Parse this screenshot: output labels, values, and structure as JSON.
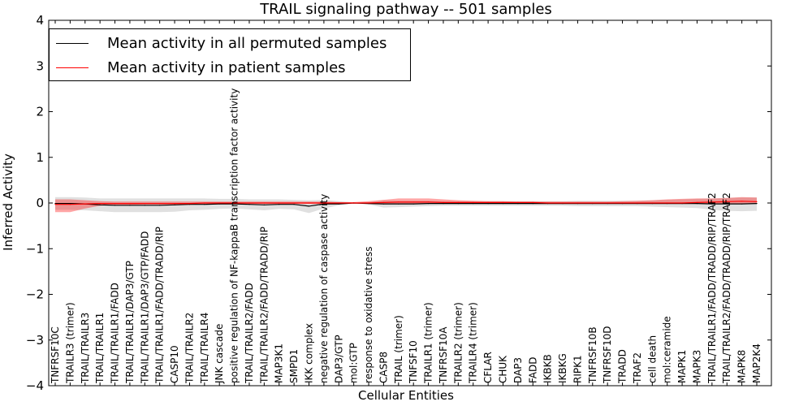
{
  "chart_data": {
    "type": "line",
    "title": "TRAIL signaling pathway -- 501 samples",
    "xlabel": "Cellular Entities",
    "ylabel": "Inferred Activity",
    "ylim": [
      -4,
      4
    ],
    "yticks": [
      "−4",
      "−3",
      "−2",
      "−1",
      "0",
      "1",
      "2",
      "3",
      "4"
    ],
    "ytick_values": [
      -4,
      -3,
      -2,
      -1,
      0,
      1,
      2,
      3,
      4
    ],
    "categories": [
      "TNFRSF10C",
      "TRAILR3 (trimer)",
      "TRAIL/TRAILR3",
      "TRAIL/TRAILR1",
      "TRAIL/TRAILR1/FADD",
      "TRAIL/TRAILR1/DAP3/GTP",
      "TRAIL/TRAILR1/DAP3/GTP/FADD",
      "TRAIL/TRAILR1/FADD/TRADD/RIP",
      "CASP10",
      "TRAIL/TRAILR2",
      "TRAIL/TRAILR4",
      "JNK cascade",
      "positive regulation of NF-kappaB transcription factor activity",
      "TRAIL/TRAILR2/FADD",
      "TRAIL/TRAILR2/FADD/TRADD/RIP",
      "MAP3K1",
      "SMPD1",
      "IKK complex",
      "negative regulation of caspase activity",
      "DAP3/GTP",
      "mol:GTP",
      "response to oxidative stress",
      "CASP8",
      "TRAIL (trimer)",
      "TNFSF10",
      "TRAILR1 (trimer)",
      "TNFRSF10A",
      "TRAILR2 (trimer)",
      "TRAILR4 (trimer)",
      "CFLAR",
      "CHUK",
      "DAP3",
      "FADD",
      "IKBKB",
      "IKBKG",
      "RIPK1",
      "TNFRSF10B",
      "TNFRSF10D",
      "TRADD",
      "TRAF2",
      "cell death",
      "mol:ceramide",
      "MAPK1",
      "MAPK3",
      "TRAIL/TRAILR1/FADD/TRADD/RIP/TRAF2",
      "TRAIL/TRAILR2/FADD/TRADD/RIP/TRAF2",
      "MAPK8",
      "MAP2K4"
    ],
    "series": [
      {
        "name": "Mean activity in all permuted samples",
        "color": "#000000",
        "values": [
          -0.01,
          -0.01,
          -0.02,
          -0.04,
          -0.05,
          -0.05,
          -0.05,
          -0.05,
          -0.04,
          -0.03,
          -0.03,
          -0.02,
          -0.02,
          -0.03,
          -0.04,
          -0.03,
          -0.03,
          -0.07,
          -0.02,
          -0.02,
          0.0,
          -0.01,
          -0.02,
          -0.02,
          -0.02,
          -0.01,
          -0.01,
          -0.01,
          -0.01,
          -0.01,
          -0.01,
          -0.01,
          -0.01,
          -0.01,
          -0.01,
          -0.01,
          -0.01,
          -0.01,
          -0.01,
          -0.01,
          -0.01,
          -0.01,
          -0.01,
          -0.01,
          -0.02,
          -0.02,
          -0.02,
          -0.01
        ],
        "band_lower": [
          -0.15,
          -0.15,
          -0.16,
          -0.18,
          -0.2,
          -0.2,
          -0.2,
          -0.2,
          -0.19,
          -0.16,
          -0.15,
          -0.13,
          -0.12,
          -0.14,
          -0.16,
          -0.13,
          -0.14,
          -0.22,
          -0.12,
          -0.05,
          -0.01,
          -0.03,
          -0.1,
          -0.09,
          -0.08,
          -0.07,
          -0.06,
          -0.06,
          -0.06,
          -0.06,
          -0.06,
          -0.06,
          -0.06,
          -0.06,
          -0.06,
          -0.07,
          -0.07,
          -0.07,
          -0.07,
          -0.07,
          -0.08,
          -0.09,
          -0.1,
          -0.11,
          -0.15,
          -0.17,
          -0.18,
          -0.17
        ],
        "band_upper": [
          0.13,
          0.13,
          0.12,
          0.1,
          0.1,
          0.1,
          0.1,
          0.1,
          0.1,
          0.1,
          0.1,
          0.09,
          0.09,
          0.08,
          0.08,
          0.08,
          0.07,
          0.06,
          0.07,
          0.04,
          0.01,
          0.02,
          0.06,
          0.05,
          0.05,
          0.05,
          0.04,
          0.04,
          0.04,
          0.04,
          0.04,
          0.04,
          0.04,
          0.04,
          0.04,
          0.05,
          0.05,
          0.05,
          0.05,
          0.05,
          0.06,
          0.07,
          0.08,
          0.09,
          0.1,
          0.11,
          0.12,
          0.12
        ]
      },
      {
        "name": "Mean activity in patient samples",
        "color": "#ff0000",
        "values": [
          -0.03,
          -0.03,
          -0.02,
          -0.01,
          -0.01,
          -0.01,
          -0.01,
          -0.01,
          -0.01,
          -0.01,
          0.0,
          0.0,
          0.0,
          0.0,
          0.0,
          0.0,
          0.0,
          0.0,
          0.0,
          0.0,
          0.0,
          0.0,
          0.01,
          0.02,
          0.02,
          0.02,
          0.01,
          0.01,
          0.01,
          0.01,
          0.01,
          0.01,
          0.01,
          0.0,
          0.0,
          0.0,
          0.0,
          0.0,
          0.0,
          0.0,
          0.0,
          0.0,
          0.0,
          0.01,
          0.02,
          0.03,
          0.04,
          0.03
        ],
        "band_lower": [
          -0.2,
          -0.2,
          -0.12,
          -0.06,
          -0.04,
          -0.04,
          -0.03,
          -0.03,
          -0.03,
          -0.03,
          -0.02,
          -0.02,
          -0.02,
          -0.02,
          -0.02,
          -0.02,
          -0.02,
          -0.02,
          -0.02,
          -0.01,
          -0.01,
          -0.01,
          -0.01,
          -0.01,
          -0.01,
          -0.01,
          -0.01,
          -0.01,
          -0.01,
          -0.01,
          -0.01,
          -0.01,
          -0.01,
          -0.01,
          -0.01,
          -0.01,
          -0.01,
          -0.01,
          -0.01,
          -0.01,
          -0.01,
          -0.01,
          -0.01,
          -0.02,
          -0.02,
          -0.02,
          -0.02,
          -0.02
        ],
        "band_upper": [
          0.08,
          0.08,
          0.06,
          0.04,
          0.03,
          0.03,
          0.03,
          0.03,
          0.03,
          0.03,
          0.03,
          0.03,
          0.03,
          0.03,
          0.03,
          0.03,
          0.03,
          0.03,
          0.03,
          0.02,
          0.02,
          0.04,
          0.07,
          0.1,
          0.1,
          0.1,
          0.08,
          0.06,
          0.05,
          0.04,
          0.04,
          0.03,
          0.03,
          0.03,
          0.03,
          0.03,
          0.03,
          0.03,
          0.04,
          0.05,
          0.06,
          0.08,
          0.09,
          0.1,
          0.1,
          0.11,
          0.13,
          0.12
        ]
      }
    ],
    "legend_position": "top-left",
    "grid": false
  }
}
